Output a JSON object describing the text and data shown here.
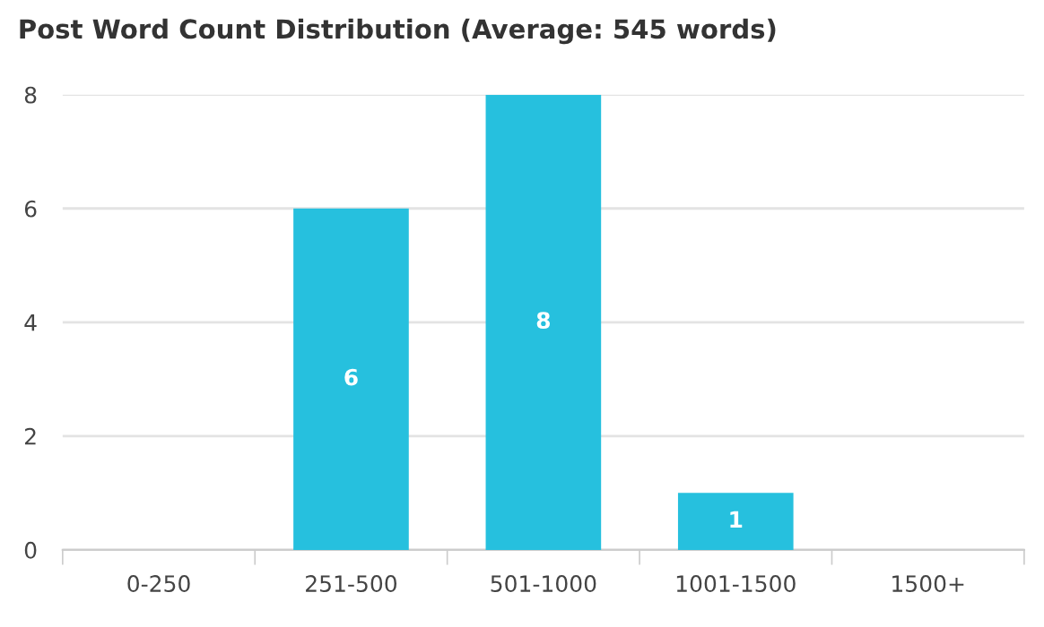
{
  "chart_data": {
    "type": "bar",
    "title": "Post Word Count Distribution (Average: 545 words)",
    "categories": [
      "0-250",
      "251-500",
      "501-1000",
      "1001-1500",
      "1500+"
    ],
    "values": [
      0,
      6,
      8,
      1,
      0
    ],
    "value_labels": [
      null,
      "6",
      "8",
      "1",
      null
    ],
    "color": "#26c0de",
    "ylim": [
      0,
      8
    ],
    "yticks": [
      0,
      2,
      4,
      6,
      8
    ],
    "grid": "y"
  }
}
